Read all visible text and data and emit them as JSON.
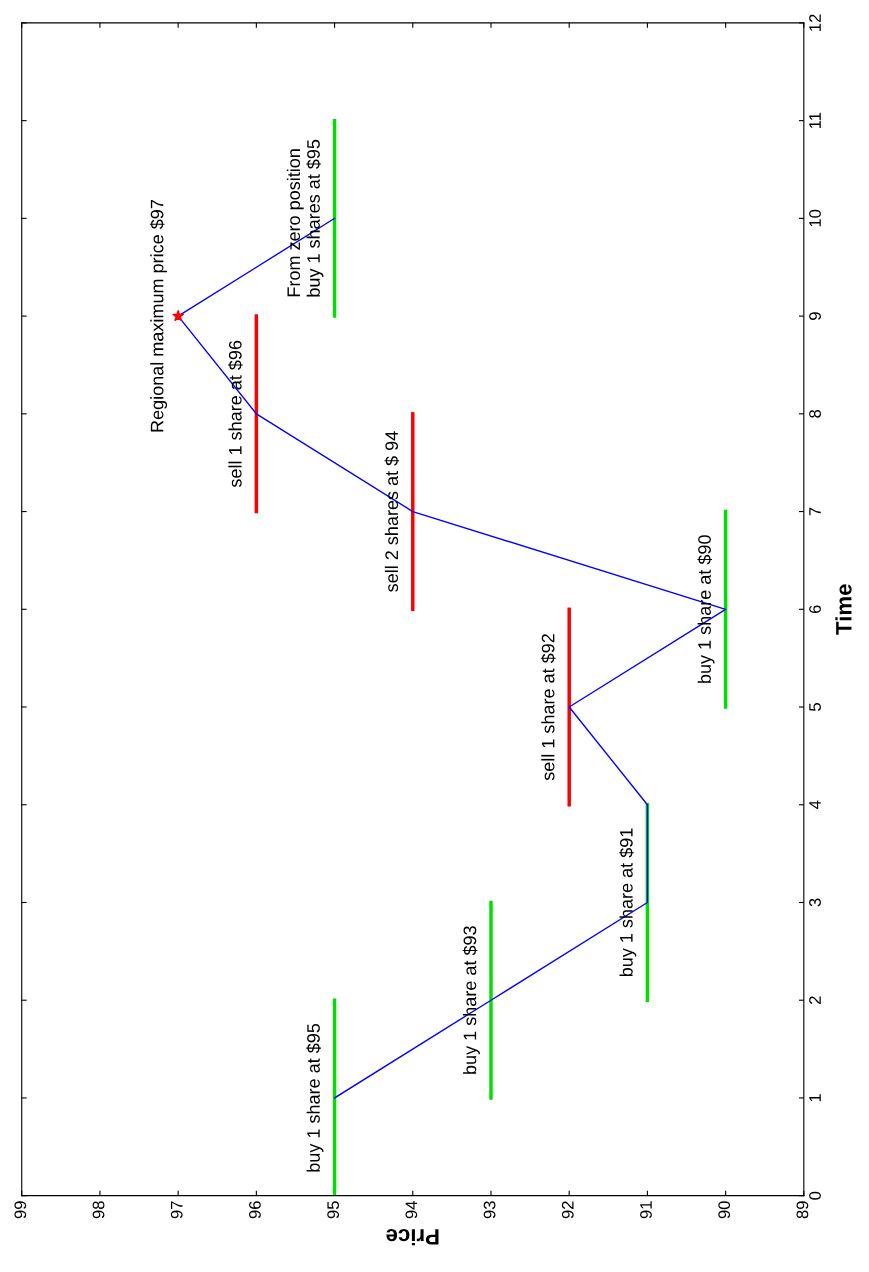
{
  "chart_data": {
    "type": "line",
    "xlabel": "Price",
    "ylabel": "Time",
    "xlim": [
      99,
      89
    ],
    "xticks": [
      99,
      98,
      97,
      96,
      95,
      94,
      93,
      92,
      91,
      90,
      89
    ],
    "ylim": [
      0,
      12
    ],
    "yticks": [
      0,
      1,
      2,
      3,
      4,
      5,
      6,
      7,
      8,
      9,
      10,
      11,
      12
    ],
    "series": [
      {
        "type": "line",
        "color": "#00e000",
        "x": [
          95,
          95
        ],
        "values": [
          0,
          2
        ]
      },
      {
        "type": "line",
        "color": "#00e000",
        "x": [
          93,
          93
        ],
        "values": [
          1,
          3
        ]
      },
      {
        "type": "line",
        "color": "#00e000",
        "x": [
          91,
          91
        ],
        "values": [
          2,
          4
        ]
      },
      {
        "type": "line",
        "color": "#ff0000",
        "x": [
          92,
          92
        ],
        "values": [
          4,
          6
        ]
      },
      {
        "type": "line",
        "color": "#00e000",
        "x": [
          90,
          90
        ],
        "values": [
          5,
          7
        ]
      },
      {
        "type": "line",
        "color": "#ff0000",
        "x": [
          94,
          94
        ],
        "values": [
          6,
          8
        ]
      },
      {
        "type": "line",
        "color": "#ff0000",
        "x": [
          96,
          96
        ],
        "values": [
          7,
          9
        ]
      },
      {
        "type": "line",
        "color": "#00e000",
        "x": [
          95,
          95
        ],
        "values": [
          9,
          11
        ]
      },
      {
        "type": "line",
        "color": "#0000ff",
        "x": [
          95,
          93,
          91,
          91,
          92,
          90,
          94,
          96,
          97,
          95
        ],
        "values": [
          1,
          2,
          3,
          4,
          5,
          6,
          7,
          8,
          9,
          10
        ]
      },
      {
        "type": "scatter",
        "color": "#ff0000",
        "marker": "star",
        "x": [
          97
        ],
        "values": [
          9
        ]
      }
    ],
    "annotations": [
      {
        "text": "buy 1 share at $95",
        "x": 95,
        "y": 1
      },
      {
        "text": "buy 1 share at $93",
        "x": 93,
        "y": 2
      },
      {
        "text": "buy 1 share at $91",
        "x": 91,
        "y": 3
      },
      {
        "text": "sell 1 share at $92",
        "x": 92,
        "y": 5
      },
      {
        "text": "buy 1 share at $90",
        "x": 90,
        "y": 6
      },
      {
        "text": "sell 2 shares at $ 94",
        "x": 94,
        "y": 7
      },
      {
        "text": "sell 1 share at $96",
        "x": 96,
        "y": 8
      },
      {
        "text": "Regional maximum price $97",
        "x": 97,
        "y": 9
      },
      {
        "text": "From zero position\nbuy 1 shares at $95",
        "x": 95,
        "y": 10
      }
    ]
  }
}
